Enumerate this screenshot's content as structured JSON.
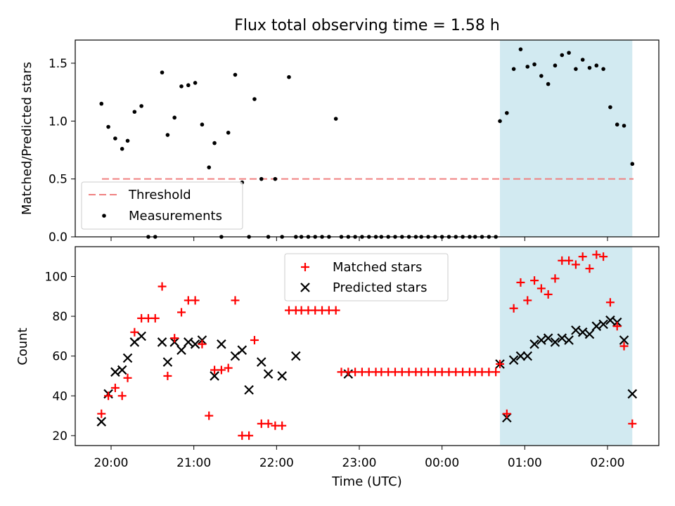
{
  "title": "Flux total observing time = 1.58 h",
  "colors": {
    "threshold": "#f08080",
    "measurement": "#000000",
    "matched": "#ff0000",
    "predicted": "#000000",
    "highlight": "#add8e6"
  },
  "chart_data": [
    {
      "type": "scatter",
      "ylabel": "Matched/Predicted stars",
      "ylim": [
        0,
        1.7
      ],
      "yticks": [
        "0.0",
        "0.5",
        "1.0",
        "1.5"
      ],
      "threshold": 0.5,
      "legend": {
        "placement": "lower-left",
        "entries": [
          "Threshold",
          "Measurements"
        ]
      },
      "highlight_span": [
        "00:42",
        "02:18"
      ],
      "series": [
        {
          "name": "Measurements",
          "x": [
            "19:53",
            "19:58",
            "20:03",
            "20:08",
            "20:12",
            "20:17",
            "20:22",
            "20:27",
            "20:32",
            "20:37",
            "20:41",
            "20:46",
            "20:51",
            "20:56",
            "21:01",
            "21:06",
            "21:11",
            "21:15",
            "21:20",
            "21:25",
            "21:30",
            "21:35",
            "21:40",
            "21:44",
            "21:49",
            "21:54",
            "21:59",
            "22:04",
            "22:09",
            "22:14",
            "22:18",
            "22:23",
            "22:28",
            "22:33",
            "22:38",
            "22:43",
            "22:47",
            "22:52",
            "22:57",
            "23:02",
            "23:07",
            "23:12",
            "23:16",
            "23:21",
            "23:26",
            "23:31",
            "23:36",
            "23:41",
            "23:45",
            "23:50",
            "23:55",
            "00:00",
            "00:05",
            "00:10",
            "00:15",
            "00:20",
            "00:24",
            "00:29",
            "00:34",
            "00:39",
            "00:42",
            "00:47",
            "00:52",
            "00:57",
            "01:02",
            "01:07",
            "01:12",
            "01:17",
            "01:22",
            "01:27",
            "01:32",
            "01:37",
            "01:42",
            "01:47",
            "01:52",
            "01:57",
            "02:02",
            "02:07",
            "02:12",
            "02:18"
          ],
          "y": [
            1.15,
            0.95,
            0.85,
            0.76,
            0.83,
            1.08,
            1.13,
            0.0,
            0.0,
            1.42,
            0.88,
            1.03,
            1.3,
            1.31,
            1.33,
            0.97,
            0.6,
            0.81,
            0.0,
            0.9,
            1.4,
            0.47,
            0.0,
            1.19,
            0.5,
            0.0,
            0.5,
            0.0,
            1.38,
            0.0,
            0.0,
            0.0,
            0.0,
            0.0,
            0.0,
            1.02,
            0.0,
            0.0,
            0.0,
            0.0,
            0.0,
            0.0,
            0.0,
            0.0,
            0.0,
            0.0,
            0.0,
            0.0,
            0.0,
            0.0,
            0.0,
            0.0,
            0.0,
            0.0,
            0.0,
            0.0,
            0.0,
            0.0,
            0.0,
            0.0,
            1.0,
            1.07,
            1.45,
            1.62,
            1.47,
            1.49,
            1.39,
            1.32,
            1.48,
            1.57,
            1.59,
            1.45,
            1.53,
            1.46,
            1.48,
            1.45,
            1.12,
            0.97,
            0.96,
            0.63
          ]
        }
      ]
    },
    {
      "type": "scatter",
      "xlabel": "Time (UTC)",
      "ylabel": "Count",
      "ylim": [
        15,
        115
      ],
      "yticks": [
        "20",
        "40",
        "60",
        "80",
        "100"
      ],
      "xticks": [
        "20:00",
        "21:00",
        "22:00",
        "23:00",
        "00:00",
        "01:00",
        "02:00"
      ],
      "legend": {
        "placement": "upper-center",
        "entries": [
          "Matched stars",
          "Predicted stars"
        ]
      },
      "highlight_span": [
        "00:42",
        "02:18"
      ],
      "series": [
        {
          "name": "Matched stars",
          "x": [
            "19:53",
            "19:58",
            "20:03",
            "20:08",
            "20:12",
            "20:17",
            "20:22",
            "20:27",
            "20:32",
            "20:37",
            "20:41",
            "20:46",
            "20:51",
            "20:56",
            "21:01",
            "21:06",
            "21:11",
            "21:15",
            "21:20",
            "21:25",
            "21:30",
            "21:35",
            "21:40",
            "21:44",
            "21:49",
            "21:54",
            "21:59",
            "22:04",
            "22:09",
            "22:14",
            "22:18",
            "22:23",
            "22:28",
            "22:33",
            "22:38",
            "22:43",
            "22:47",
            "22:52",
            "22:57",
            "23:02",
            "23:07",
            "23:12",
            "23:16",
            "23:21",
            "23:26",
            "23:31",
            "23:36",
            "23:41",
            "23:45",
            "23:50",
            "23:55",
            "00:00",
            "00:05",
            "00:10",
            "00:15",
            "00:20",
            "00:24",
            "00:29",
            "00:34",
            "00:39",
            "00:42",
            "00:47",
            "00:52",
            "00:57",
            "01:02",
            "01:07",
            "01:12",
            "01:17",
            "01:22",
            "01:27",
            "01:32",
            "01:37",
            "01:42",
            "01:47",
            "01:52",
            "01:57",
            "02:02",
            "02:07",
            "02:12",
            "02:18"
          ],
          "y": [
            31,
            40,
            44,
            40,
            49,
            72,
            79,
            79,
            79,
            95,
            50,
            69,
            82,
            88,
            88,
            66,
            30,
            53,
            53,
            54,
            88,
            20,
            20,
            68,
            26,
            26,
            25,
            25,
            83,
            83,
            83,
            83,
            83,
            83,
            83,
            83,
            52,
            52,
            52,
            52,
            52,
            52,
            52,
            52,
            52,
            52,
            52,
            52,
            52,
            52,
            52,
            52,
            52,
            52,
            52,
            52,
            52,
            52,
            52,
            52,
            56,
            31,
            84,
            97,
            88,
            98,
            94,
            91,
            99,
            108,
            108,
            106,
            110,
            104,
            111,
            110,
            87,
            75,
            65,
            26
          ]
        },
        {
          "name": "Predicted stars",
          "x": [
            "19:53",
            "19:58",
            "20:03",
            "20:08",
            "20:12",
            "20:17",
            "20:22",
            "20:37",
            "20:41",
            "20:46",
            "20:51",
            "20:56",
            "21:01",
            "21:06",
            "21:15",
            "21:20",
            "21:30",
            "21:35",
            "21:40",
            "21:49",
            "21:54",
            "22:04",
            "22:14",
            "22:52",
            "00:42",
            "00:47",
            "00:52",
            "00:57",
            "01:02",
            "01:07",
            "01:12",
            "01:17",
            "01:22",
            "01:27",
            "01:32",
            "01:37",
            "01:42",
            "01:47",
            "01:52",
            "01:57",
            "02:02",
            "02:07",
            "02:12",
            "02:18"
          ],
          "y": [
            27,
            41,
            52,
            53,
            59,
            67,
            70,
            67,
            57,
            67,
            63,
            67,
            66,
            68,
            50,
            66,
            60,
            63,
            43,
            57,
            51,
            50,
            60,
            51,
            56,
            29,
            58,
            60,
            60,
            66,
            68,
            69,
            67,
            69,
            68,
            73,
            72,
            71,
            75,
            76,
            78,
            77,
            68,
            41
          ]
        }
      ]
    }
  ]
}
